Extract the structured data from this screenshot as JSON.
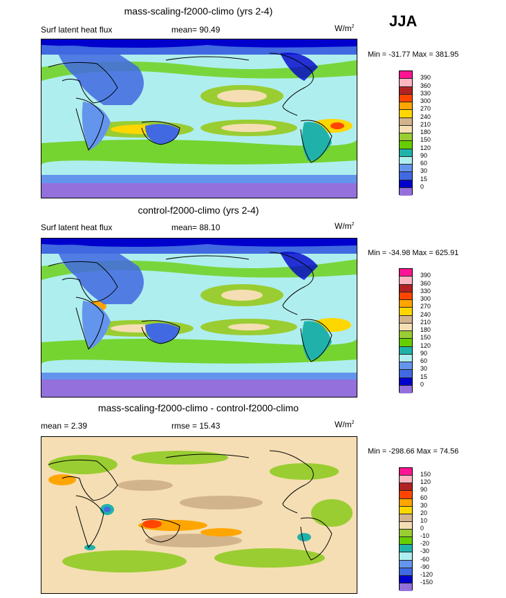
{
  "season": "JJA",
  "panels": [
    {
      "title": "mass-scaling-f2000-climo (yrs 2-4)",
      "left_label": "Surf latent heat flux",
      "mid_label": "mean=  90.49",
      "units": "W/m",
      "units_sup": "2",
      "minmax": "Min = -31.77 Max = 381.95",
      "colorbar_labels": [
        "390",
        "360",
        "330",
        "300",
        "270",
        "240",
        "210",
        "180",
        "150",
        "120",
        "90",
        "60",
        "30",
        "15",
        "0"
      ]
    },
    {
      "title": "control-f2000-climo (yrs 2-4)",
      "left_label": "Surf latent heat flux",
      "mid_label": "mean=  88.10",
      "units": "W/m",
      "units_sup": "2",
      "minmax": "Min = -34.98 Max = 625.91",
      "colorbar_labels": [
        "390",
        "360",
        "330",
        "300",
        "270",
        "240",
        "210",
        "180",
        "150",
        "120",
        "90",
        "60",
        "30",
        "15",
        "0"
      ]
    },
    {
      "title": "mass-scaling-f2000-climo - control-f2000-climo",
      "left_label": "mean =   2.39",
      "mid_label": "rmse =  15.43",
      "units": "W/m",
      "units_sup": "2",
      "minmax": "Min = -298.66 Max =  74.56",
      "colorbar_labels": [
        "150",
        "120",
        "90",
        "60",
        "30",
        "20",
        "10",
        "0",
        "-10",
        "-20",
        "-30",
        "-60",
        "-90",
        "-120",
        "-150"
      ]
    }
  ],
  "colors": {
    "abs_scale": [
      "#ff1493",
      "#ffb6c1",
      "#b22222",
      "#ff4500",
      "#ffa500",
      "#ffd700",
      "#d2b48c",
      "#f5deb3",
      "#9acd32",
      "#66cd00",
      "#20b2aa",
      "#afeeee",
      "#6495ed",
      "#4169e1",
      "#0000cd",
      "#9370db"
    ],
    "diff_scale": [
      "#ff1493",
      "#ffb6c1",
      "#b22222",
      "#ff4500",
      "#ffa500",
      "#ffd700",
      "#d2b48c",
      "#f5deb3",
      "#9acd32",
      "#66cd00",
      "#20b2aa",
      "#afeeee",
      "#6495ed",
      "#4169e1",
      "#0000cd",
      "#9370db"
    ]
  }
}
